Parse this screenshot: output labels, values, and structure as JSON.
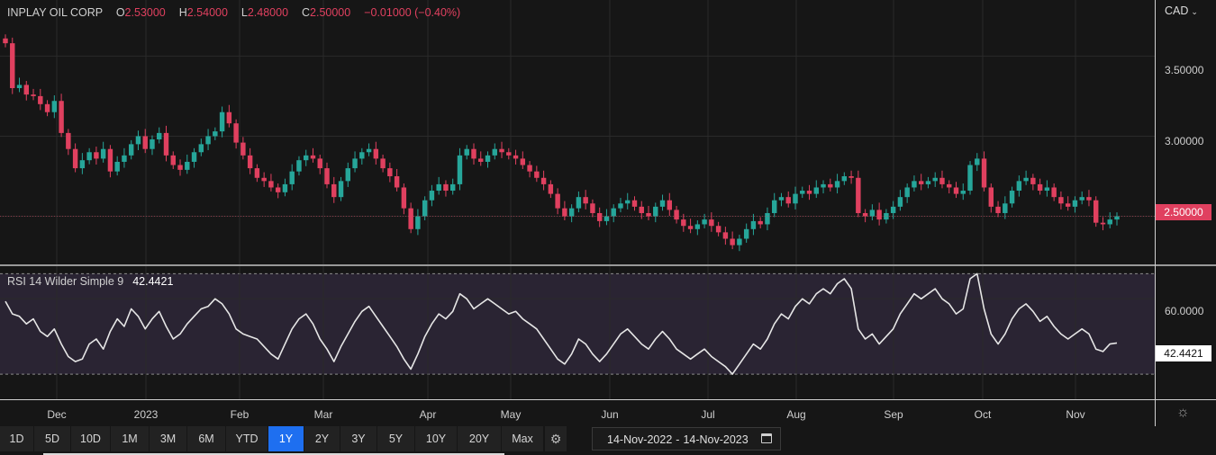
{
  "legend": {
    "name": "INPLAY OIL CORP",
    "o_label": "O",
    "o": "2.53000",
    "h_label": "H",
    "h": "2.54000",
    "l_label": "L",
    "l": "2.48000",
    "c_label": "C",
    "c": "2.50000",
    "change": "−0.01000 (−0.40%)"
  },
  "currency": {
    "label": "CAD"
  },
  "rsi_legend": {
    "label": "RSI 14 Wilder Simple 9",
    "value": "42.4421"
  },
  "price_tag": "2.50000",
  "rsi_tag": "42.4421",
  "price_axis": [
    "3.50000",
    "3.00000"
  ],
  "rsi_axis": [
    "60.0000"
  ],
  "months": [
    "Dec",
    "2023",
    "Feb",
    "Mar",
    "Apr",
    "May",
    "Jun",
    "Jul",
    "Aug",
    "Sep",
    "Oct",
    "Nov"
  ],
  "ranges": [
    {
      "label": "1D",
      "active": false
    },
    {
      "label": "5D",
      "active": false
    },
    {
      "label": "10D",
      "active": false
    },
    {
      "label": "1M",
      "active": false
    },
    {
      "label": "3M",
      "active": false
    },
    {
      "label": "6M",
      "active": false
    },
    {
      "label": "YTD",
      "active": false
    },
    {
      "label": "1Y",
      "active": true
    },
    {
      "label": "2Y",
      "active": false
    },
    {
      "label": "3Y",
      "active": false
    },
    {
      "label": "5Y",
      "active": false
    },
    {
      "label": "10Y",
      "active": false
    },
    {
      "label": "20Y",
      "active": false
    },
    {
      "label": "Max",
      "active": false
    }
  ],
  "date_range": {
    "from": "14-Nov-2022",
    "to": "14-Nov-2023"
  },
  "colors": {
    "up": "#26a69a",
    "down": "#e0405f",
    "rsi_line": "#e6e6e6",
    "band": "#2a2433",
    "accent": "#1e6ff0"
  },
  "chart_data": {
    "type": "candlestick",
    "price_axis": {
      "ticks": [
        3.5,
        3.0,
        2.5
      ],
      "range": [
        2.2,
        3.85
      ]
    },
    "rsi_axis": {
      "ticks": [
        60
      ],
      "range": [
        20,
        73
      ],
      "band": [
        30,
        70
      ]
    },
    "close_series": [
      3.58,
      3.3,
      3.32,
      3.26,
      3.25,
      3.2,
      3.15,
      3.22,
      3.02,
      2.92,
      2.8,
      2.85,
      2.9,
      2.86,
      2.92,
      2.78,
      2.84,
      2.88,
      2.95,
      3.0,
      2.92,
      2.98,
      3.02,
      2.88,
      2.82,
      2.79,
      2.84,
      2.9,
      2.95,
      3.0,
      3.03,
      3.15,
      3.08,
      2.96,
      2.88,
      2.8,
      2.74,
      2.72,
      2.68,
      2.65,
      2.7,
      2.78,
      2.85,
      2.88,
      2.86,
      2.8,
      2.7,
      2.62,
      2.72,
      2.8,
      2.86,
      2.9,
      2.92,
      2.86,
      2.8,
      2.75,
      2.68,
      2.55,
      2.42,
      2.5,
      2.6,
      2.66,
      2.7,
      2.66,
      2.7,
      2.88,
      2.92,
      2.86,
      2.84,
      2.88,
      2.92,
      2.9,
      2.88,
      2.86,
      2.82,
      2.78,
      2.74,
      2.7,
      2.64,
      2.55,
      2.5,
      2.55,
      2.62,
      2.58,
      2.52,
      2.47,
      2.5,
      2.55,
      2.58,
      2.6,
      2.56,
      2.52,
      2.5,
      2.56,
      2.6,
      2.54,
      2.48,
      2.44,
      2.42,
      2.45,
      2.48,
      2.44,
      2.4,
      2.36,
      2.32,
      2.36,
      2.42,
      2.47,
      2.45,
      2.52,
      2.6,
      2.62,
      2.58,
      2.64,
      2.66,
      2.64,
      2.68,
      2.7,
      2.68,
      2.72,
      2.75,
      2.74,
      2.52,
      2.5,
      2.54,
      2.48,
      2.52,
      2.56,
      2.62,
      2.68,
      2.72,
      2.7,
      2.72,
      2.74,
      2.7,
      2.68,
      2.64,
      2.66,
      2.82,
      2.86,
      2.68,
      2.56,
      2.52,
      2.58,
      2.66,
      2.72,
      2.74,
      2.7,
      2.66,
      2.68,
      2.62,
      2.58,
      2.56,
      2.6,
      2.62,
      2.6,
      2.46,
      2.45,
      2.48,
      2.5
    ],
    "rsi_series": [
      59,
      54,
      53,
      50,
      52,
      47,
      45,
      48,
      42,
      37,
      35,
      36,
      42,
      44,
      40,
      47,
      52,
      49,
      56,
      53,
      48,
      52,
      55,
      49,
      44,
      46,
      50,
      53,
      56,
      57,
      60,
      58,
      54,
      48,
      46,
      45,
      44,
      41,
      38,
      36,
      42,
      48,
      52,
      54,
      50,
      44,
      40,
      35,
      41,
      46,
      51,
      55,
      57,
      53,
      49,
      45,
      41,
      36,
      32,
      38,
      45,
      50,
      54,
      52,
      55,
      62,
      60,
      56,
      58,
      60,
      58,
      56,
      54,
      55,
      52,
      50,
      48,
      44,
      40,
      36,
      34,
      38,
      44,
      42,
      38,
      35,
      38,
      42,
      46,
      48,
      45,
      42,
      40,
      44,
      47,
      44,
      40,
      38,
      36,
      38,
      40,
      37,
      35,
      33,
      30,
      34,
      38,
      42,
      40,
      44,
      50,
      54,
      52,
      57,
      60,
      58,
      62,
      64,
      62,
      66,
      68,
      64,
      48,
      44,
      46,
      42,
      45,
      48,
      54,
      58,
      62,
      60,
      62,
      64,
      60,
      58,
      54,
      56,
      68,
      70,
      56,
      46,
      42,
      46,
      52,
      56,
      58,
      55,
      51,
      53,
      49,
      46,
      44,
      46,
      48,
      46,
      40,
      39,
      42,
      42.4
    ]
  }
}
